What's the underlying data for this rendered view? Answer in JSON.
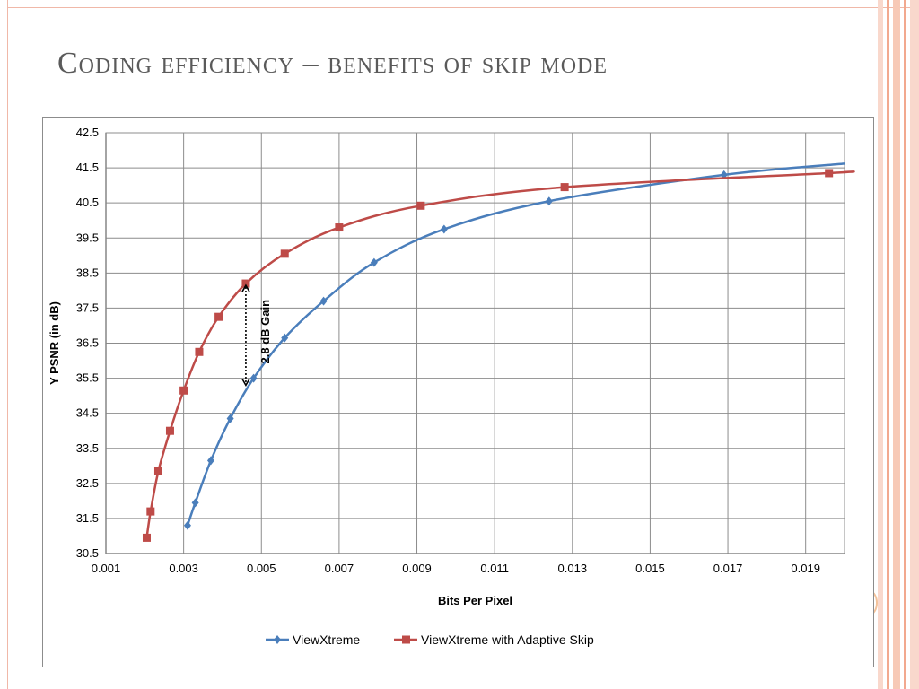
{
  "slide": {
    "title": "Coding efficiency – benefits of skip mode",
    "accent_color": "#f0a58a"
  },
  "chart_data": {
    "type": "line",
    "title": "",
    "xlabel": "Bits Per Pixel",
    "ylabel": "Y PSNR (in dB)",
    "xlim": [
      0.001,
      0.02
    ],
    "ylim": [
      30.5,
      42.5
    ],
    "x_ticks": [
      "0.001",
      "0.003",
      "0.005",
      "0.007",
      "0.009",
      "0.011",
      "0.013",
      "0.015",
      "0.017",
      "0.019"
    ],
    "y_ticks": [
      "30.5",
      "31.5",
      "32.5",
      "33.5",
      "34.5",
      "35.5",
      "36.5",
      "37.5",
      "38.5",
      "39.5",
      "40.5",
      "41.5",
      "42.5"
    ],
    "grid": true,
    "legend_position": "bottom",
    "series": [
      {
        "name": "ViewXtreme",
        "color": "#4a7ebb",
        "marker": "diamond",
        "points": [
          [
            0.0031,
            31.3
          ],
          [
            0.0033,
            31.95
          ],
          [
            0.0037,
            33.15
          ],
          [
            0.0042,
            34.35
          ],
          [
            0.0048,
            35.5
          ],
          [
            0.0056,
            36.65
          ],
          [
            0.0066,
            37.7
          ],
          [
            0.0079,
            38.8
          ],
          [
            0.0097,
            39.75
          ],
          [
            0.0124,
            40.55
          ],
          [
            0.0169,
            41.3
          ]
        ],
        "curve_end": [
          0.02,
          41.62
        ]
      },
      {
        "name": "ViewXtreme with Adaptive Skip",
        "color": "#be4b48",
        "marker": "square",
        "points": [
          [
            0.00205,
            30.95
          ],
          [
            0.00215,
            31.7
          ],
          [
            0.00235,
            32.85
          ],
          [
            0.00265,
            34.0
          ],
          [
            0.003,
            35.15
          ],
          [
            0.0034,
            36.25
          ],
          [
            0.0039,
            37.25
          ],
          [
            0.0046,
            38.2
          ],
          [
            0.0056,
            39.05
          ],
          [
            0.007,
            39.8
          ],
          [
            0.0091,
            40.42
          ],
          [
            0.0128,
            40.95
          ],
          [
            0.0196,
            41.35
          ]
        ],
        "curve_end": [
          0.02,
          41.38
        ]
      }
    ],
    "annotations": [
      {
        "text": "2.8 dB Gain",
        "x": 0.0046,
        "y_from": 38.2,
        "y_to": 35.25
      }
    ]
  }
}
